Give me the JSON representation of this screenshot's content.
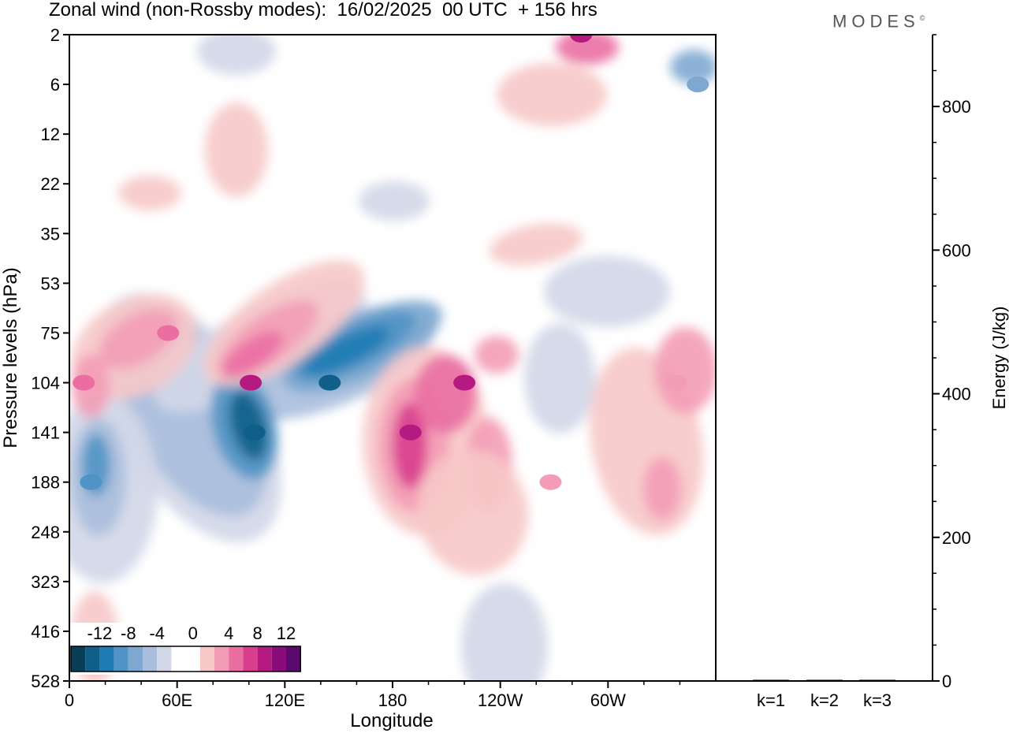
{
  "header": {
    "title": "Zonal wind (non-Rossby modes):  16/02/2025  00 UTC  + 156 hrs",
    "logo": "MODES",
    "logo_mark": "©"
  },
  "chart_data": [
    {
      "type": "heatmap",
      "title": "Zonal wind (non-Rossby modes):  16/02/2025  00 UTC  + 156 hrs",
      "xlabel": "Longitude",
      "ylabel": "Pressure levels (hPa)",
      "x_ticks": [
        "0",
        "60E",
        "120E",
        "180",
        "120W",
        "60W"
      ],
      "x_tick_values": [
        0,
        60,
        120,
        180,
        240,
        300
      ],
      "xlim": [
        0,
        360
      ],
      "y_ticks": [
        "2",
        "6",
        "12",
        "22",
        "35",
        "53",
        "75",
        "104",
        "141",
        "188",
        "248",
        "323",
        "416",
        "528"
      ],
      "y_scale": "categorical-levels",
      "colorbar": {
        "labels": [
          "-12",
          "-8",
          "-4",
          "0",
          "4",
          "8",
          "12"
        ],
        "levels": [
          -16,
          -14,
          -12,
          -10,
          -8,
          -6,
          -4,
          -2,
          2,
          4,
          6,
          8,
          10,
          12,
          14,
          16
        ],
        "colors": [
          "#0a3d58",
          "#0f5f8a",
          "#1f7bb3",
          "#4f94c4",
          "#7ea8d0",
          "#a9bedd",
          "#d2d7e8",
          "#ffffff",
          "#ffffff",
          "#f7c8c8",
          "#f39cb6",
          "#ea6ea2",
          "#d93d8e",
          "#b51a80",
          "#8a0c7a",
          "#5a0a6e"
        ],
        "position": "bottom-left"
      },
      "features": [
        {
          "kind": "max",
          "lon": 220,
          "level": "104",
          "value": 12
        },
        {
          "kind": "max",
          "lon": 101,
          "level": "104",
          "value": 12
        },
        {
          "kind": "max",
          "lon": 285,
          "level": "2",
          "value": 12
        },
        {
          "kind": "max",
          "lon": 190,
          "level": "141",
          "value": 12
        },
        {
          "kind": "min",
          "lon": 145,
          "level": "104",
          "value": -14
        },
        {
          "kind": "min",
          "lon": 103,
          "level": "141",
          "value": -14
        },
        {
          "kind": "min",
          "lon": 12,
          "level": "188",
          "value": -10
        },
        {
          "kind": "min",
          "lon": 350,
          "level": "6",
          "value": -8
        },
        {
          "kind": "max",
          "lon": 55,
          "level": "75",
          "value": 8
        },
        {
          "kind": "max",
          "lon": 8,
          "level": "104",
          "value": 8
        },
        {
          "kind": "max",
          "lon": 338,
          "level": "104",
          "value": 6
        },
        {
          "kind": "max",
          "lon": 268,
          "level": "188",
          "value": 6
        }
      ]
    },
    {
      "type": "bar",
      "categories": [
        "k=1",
        "k=2",
        "k=3"
      ],
      "values": [
        1,
        1,
        1
      ],
      "ylabel": "Energy (J/kg)",
      "ylim": [
        0,
        900
      ],
      "y_ticks": [
        0,
        200,
        400,
        600,
        800
      ]
    }
  ]
}
